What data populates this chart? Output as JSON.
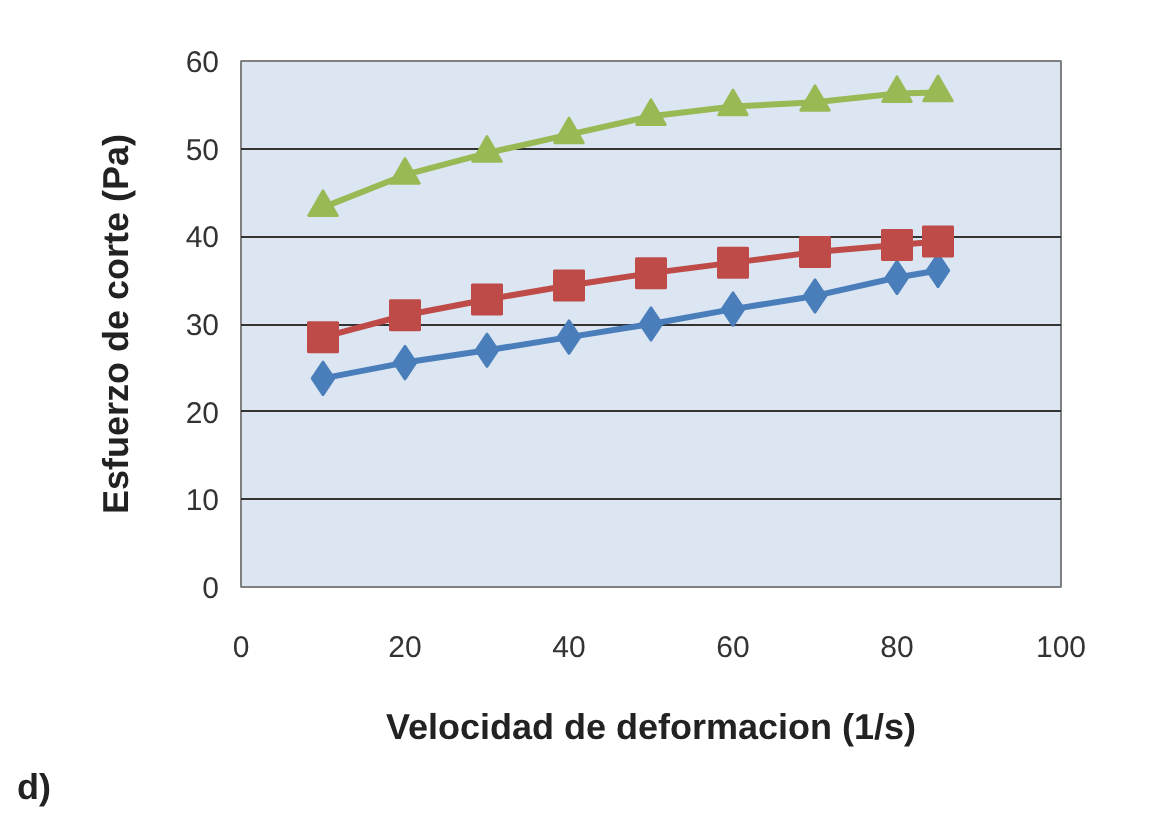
{
  "chart_data": {
    "type": "line",
    "xlabel": "Velocidad de deformacion (1/s)",
    "ylabel": "Esfuerzo de corte (Pa)",
    "x": [
      10,
      20,
      30,
      40,
      50,
      60,
      70,
      80,
      85
    ],
    "series": [
      {
        "color": "#4a7ebb",
        "marker": "diamond",
        "values": [
          23.8,
          25.6,
          27.0,
          28.5,
          30.0,
          31.7,
          33.2,
          35.3,
          36.1
        ]
      },
      {
        "color": "#be4b48",
        "marker": "square",
        "values": [
          28.5,
          31.0,
          32.8,
          34.4,
          35.8,
          37.0,
          38.2,
          39.0,
          39.4
        ]
      },
      {
        "color": "#98b954",
        "marker": "triangle",
        "values": [
          43.3,
          47.0,
          49.5,
          51.6,
          53.7,
          54.8,
          55.3,
          56.3,
          56.4
        ]
      }
    ],
    "xlim": [
      0,
      100
    ],
    "xticks": [
      0,
      20,
      40,
      60,
      80,
      100
    ],
    "ylim": [
      0,
      60
    ],
    "yticks": [
      0,
      10,
      20,
      30,
      40,
      50,
      60
    ],
    "grid": "y",
    "annotations": [
      "d)"
    ]
  }
}
